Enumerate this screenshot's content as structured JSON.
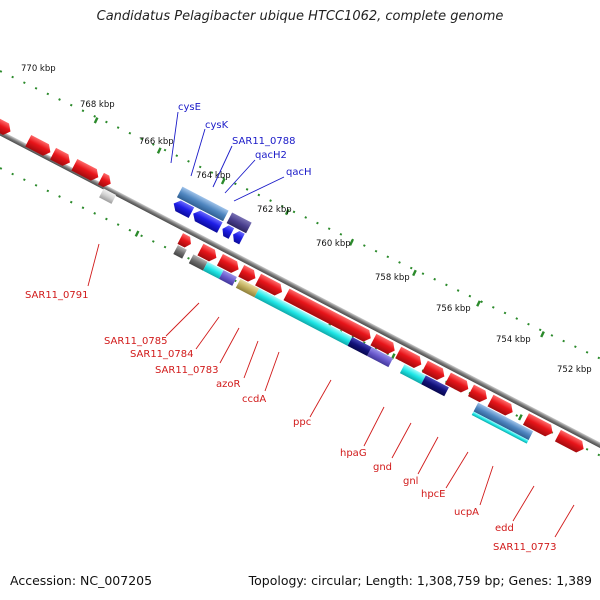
{
  "title": "Candidatus Pelagibacter ubique HTCC1062, complete genome",
  "accession": "Accession: NC_007205",
  "topology": "Topology: circular; Length: 1,308,759 bp; Genes: 1,389",
  "colors": {
    "backbone": "#8a8a8a",
    "tick": "#2b8a2b",
    "forward_gene": "#e8151a",
    "reverse_gene": "#1e1ee6",
    "top_label": "#1a1ac8",
    "bottom_label": "#d11a1a"
  },
  "scale_labels": [
    "770 kbp",
    "768 kbp",
    "766 kbp",
    "764 kbp",
    "762 kbp",
    "760 kbp",
    "758 kbp",
    "756 kbp",
    "754 kbp",
    "752 kbp"
  ],
  "top_gene_labels": [
    "cysE",
    "cysK",
    "SAR11_0788",
    "qacH2",
    "qacH"
  ],
  "bottom_gene_labels": [
    "SAR11_0791",
    "SAR11_0785",
    "SAR11_0784",
    "SAR11_0783",
    "azoR",
    "ccdA",
    "ppc",
    "hpaG",
    "gnd",
    "gnl",
    "hpcE",
    "ucpA",
    "edd",
    "SAR11_0773"
  ]
}
